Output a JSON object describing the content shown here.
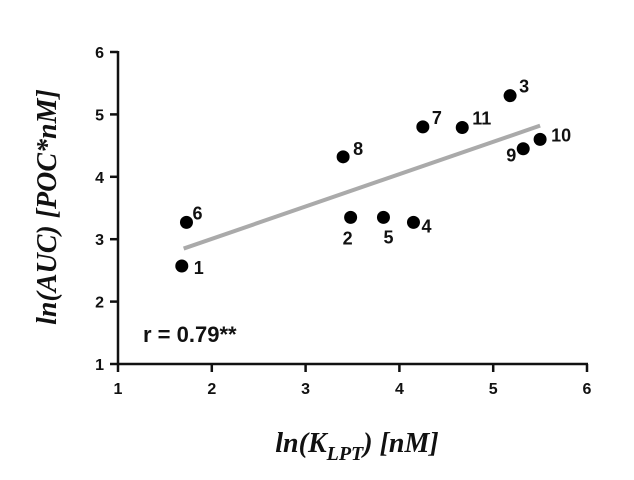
{
  "chart_data": {
    "type": "scatter",
    "xlabel": "ln(K_LPT) [nM]",
    "xlabel_main": "ln(K",
    "xlabel_sub": "LPT",
    "xlabel_tail": ") [nM]",
    "ylabel": "ln(AUC) [POC*nM]",
    "xlim": [
      1,
      6
    ],
    "ylim": [
      1,
      6
    ],
    "xticks": [
      "1",
      "2",
      "3",
      "4",
      "5",
      "6"
    ],
    "yticks": [
      "1",
      "2",
      "3",
      "4",
      "5",
      "6"
    ],
    "grid": false,
    "points": [
      {
        "label": "1",
        "x": 1.68,
        "y": 2.57
      },
      {
        "label": "2",
        "x": 3.48,
        "y": 3.35
      },
      {
        "label": "3",
        "x": 5.18,
        "y": 5.3
      },
      {
        "label": "4",
        "x": 4.15,
        "y": 3.27
      },
      {
        "label": "5",
        "x": 3.83,
        "y": 3.35
      },
      {
        "label": "6",
        "x": 1.73,
        "y": 3.27
      },
      {
        "label": "7",
        "x": 4.25,
        "y": 4.8
      },
      {
        "label": "8",
        "x": 3.4,
        "y": 4.32
      },
      {
        "label": "9",
        "x": 5.32,
        "y": 4.45
      },
      {
        "label": "10",
        "x": 5.5,
        "y": 4.6
      },
      {
        "label": "11",
        "x": 4.67,
        "y": 4.79
      }
    ],
    "fit_line": {
      "x": [
        1.7,
        5.5
      ],
      "y": [
        2.85,
        4.82
      ],
      "color": "#aaaaaa"
    },
    "annotation": "r = 0.79**",
    "marker_color": "#000000"
  }
}
